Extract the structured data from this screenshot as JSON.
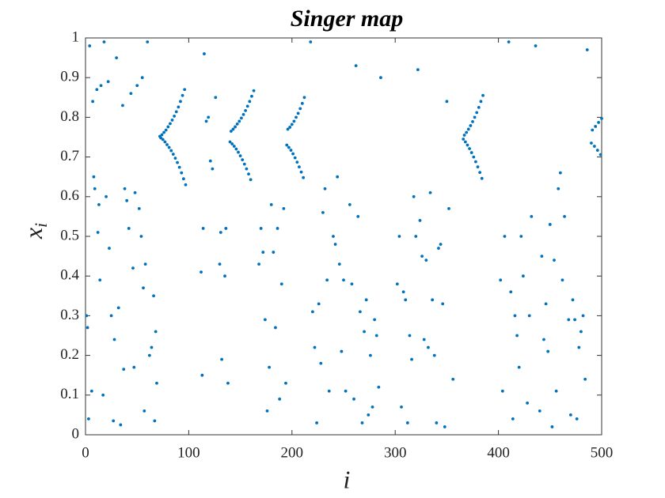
{
  "chart_data": {
    "type": "scatter",
    "title": "Singer map",
    "xlabel": "i",
    "ylabel": "x",
    "ylabel_subscript": "i",
    "color": "#0072bd",
    "xlim": [
      0,
      500
    ],
    "ylim": [
      0,
      1
    ],
    "xticks": [
      0,
      100,
      200,
      300,
      400,
      500
    ],
    "yticks": [
      0,
      0.1,
      0.2,
      0.3,
      0.4,
      0.5,
      0.6,
      0.7,
      0.8,
      0.9,
      1
    ],
    "x": [
      72,
      74,
      76,
      78,
      80,
      82,
      84,
      86,
      88,
      90,
      92,
      94,
      96,
      73,
      75,
      77,
      79,
      81,
      83,
      85,
      87,
      89,
      91,
      93,
      95,
      97,
      141,
      143,
      145,
      147,
      149,
      151,
      153,
      155,
      157,
      159,
      161,
      163,
      140,
      142,
      144,
      146,
      148,
      150,
      152,
      154,
      156,
      158,
      160,
      196,
      198,
      200,
      202,
      204,
      206,
      208,
      210,
      212,
      195,
      197,
      199,
      201,
      203,
      205,
      207,
      209,
      211,
      367,
      369,
      371,
      373,
      375,
      377,
      379,
      381,
      383,
      385,
      366,
      368,
      370,
      372,
      374,
      376,
      378,
      380,
      382,
      384,
      491,
      494,
      497,
      500,
      490,
      493,
      496,
      499,
      1,
      2,
      3,
      4,
      6,
      7,
      8,
      9,
      11,
      12,
      13,
      14,
      15,
      17,
      18,
      20,
      22,
      23,
      25,
      27,
      28,
      30,
      32,
      34,
      36,
      37,
      38,
      40,
      42,
      44,
      46,
      47,
      48,
      50,
      52,
      54,
      55,
      56,
      57,
      58,
      60,
      62,
      64,
      66,
      67,
      68,
      69,
      112,
      113,
      114,
      115,
      117,
      119,
      121,
      123,
      126,
      130,
      131,
      132,
      135,
      136,
      138,
      168,
      170,
      172,
      174,
      176,
      178,
      180,
      182,
      184,
      186,
      188,
      190,
      192,
      194,
      218,
      220,
      222,
      224,
      226,
      228,
      230,
      232,
      234,
      236,
      240,
      242,
      244,
      246,
      248,
      250,
      252,
      256,
      258,
      260,
      262,
      264,
      266,
      268,
      270,
      272,
      274,
      276,
      278,
      280,
      282,
      284,
      286,
      302,
      304,
      306,
      308,
      310,
      312,
      314,
      316,
      318,
      320,
      322,
      324,
      326,
      328,
      330,
      332,
      334,
      336,
      338,
      340,
      342,
      344,
      346,
      348,
      350,
      352,
      356,
      402,
      404,
      406,
      410,
      412,
      414,
      416,
      418,
      420,
      422,
      424,
      428,
      430,
      432,
      436,
      440,
      442,
      444,
      446,
      448,
      450,
      452,
      454,
      456,
      458,
      460,
      462,
      464,
      468,
      470,
      472,
      474,
      476,
      478,
      480,
      482,
      484,
      486
    ],
    "values": [
      0.752,
      0.756,
      0.762,
      0.768,
      0.776,
      0.784,
      0.793,
      0.803,
      0.814,
      0.826,
      0.84,
      0.855,
      0.87,
      0.748,
      0.744,
      0.738,
      0.731,
      0.724,
      0.716,
      0.707,
      0.697,
      0.686,
      0.674,
      0.66,
      0.645,
      0.63,
      0.765,
      0.77,
      0.776,
      0.783,
      0.79,
      0.798,
      0.807,
      0.817,
      0.828,
      0.84,
      0.853,
      0.867,
      0.738,
      0.733,
      0.727,
      0.72,
      0.712,
      0.703,
      0.693,
      0.682,
      0.67,
      0.657,
      0.643,
      0.77,
      0.775,
      0.782,
      0.79,
      0.8,
      0.81,
      0.822,
      0.835,
      0.85,
      0.73,
      0.724,
      0.717,
      0.708,
      0.698,
      0.687,
      0.675,
      0.662,
      0.648,
      0.755,
      0.762,
      0.77,
      0.779,
      0.789,
      0.8,
      0.812,
      0.825,
      0.84,
      0.855,
      0.745,
      0.738,
      0.73,
      0.721,
      0.711,
      0.7,
      0.688,
      0.675,
      0.661,
      0.646,
      0.768,
      0.777,
      0.787,
      0.797,
      0.735,
      0.727,
      0.717,
      0.706,
      0.3,
      0.27,
      0.04,
      0.98,
      0.11,
      0.84,
      0.65,
      0.62,
      0.87,
      0.51,
      0.58,
      0.39,
      0.88,
      0.1,
      0.99,
      0.6,
      0.89,
      0.47,
      0.3,
      0.035,
      0.24,
      0.95,
      0.32,
      0.025,
      0.83,
      0.165,
      0.62,
      0.59,
      0.52,
      0.86,
      0.42,
      0.17,
      0.61,
      0.88,
      0.57,
      0.5,
      0.9,
      0.37,
      0.06,
      0.43,
      0.99,
      0.2,
      0.22,
      0.35,
      0.035,
      0.26,
      0.13,
      0.41,
      0.15,
      0.52,
      0.96,
      0.79,
      0.8,
      0.69,
      0.67,
      0.85,
      0.43,
      0.51,
      0.19,
      0.4,
      0.52,
      0.13,
      0.43,
      0.52,
      0.46,
      0.29,
      0.06,
      0.17,
      0.58,
      0.46,
      0.27,
      0.52,
      0.09,
      0.38,
      0.57,
      0.13,
      0.99,
      0.31,
      0.22,
      0.03,
      0.33,
      0.18,
      0.56,
      0.62,
      0.39,
      0.11,
      0.5,
      0.48,
      0.65,
      0.43,
      0.21,
      0.39,
      0.11,
      0.58,
      0.38,
      0.09,
      0.93,
      0.55,
      0.31,
      0.03,
      0.26,
      0.34,
      0.05,
      0.2,
      0.07,
      0.29,
      0.25,
      0.12,
      0.9,
      0.38,
      0.5,
      0.07,
      0.36,
      0.34,
      0.03,
      0.25,
      0.19,
      0.6,
      0.5,
      0.92,
      0.54,
      0.45,
      0.24,
      0.44,
      0.22,
      0.61,
      0.34,
      0.2,
      0.03,
      0.47,
      0.48,
      0.33,
      0.02,
      0.84,
      0.57,
      0.14,
      0.39,
      0.11,
      0.5,
      0.99,
      0.36,
      0.04,
      0.3,
      0.25,
      0.17,
      0.5,
      0.4,
      0.08,
      0.3,
      0.55,
      0.98,
      0.06,
      0.45,
      0.24,
      0.33,
      0.21,
      0.53,
      0.02,
      0.44,
      0.11,
      0.62,
      0.66,
      0.39,
      0.55,
      0.29,
      0.05,
      0.34,
      0.29,
      0.04,
      0.22,
      0.26,
      0.3,
      0.14,
      0.97
    ]
  }
}
